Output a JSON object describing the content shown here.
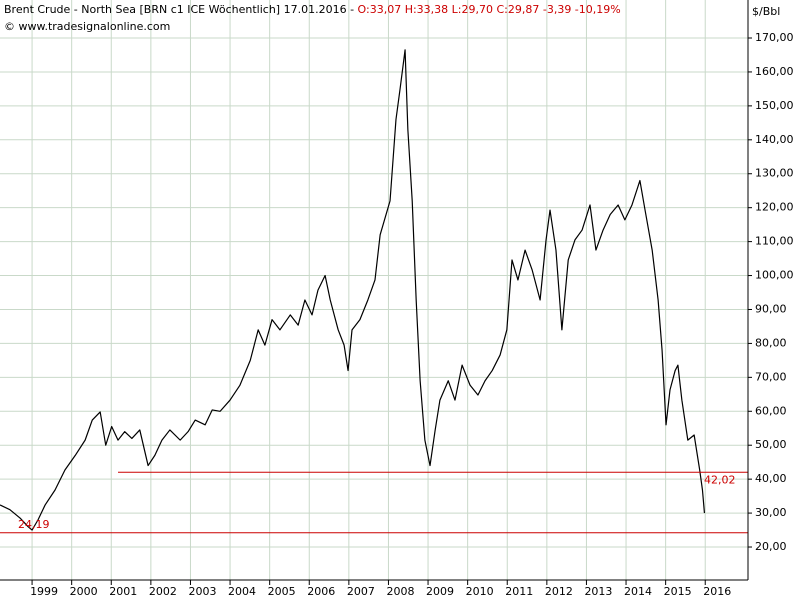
{
  "chart_data": {
    "type": "line",
    "title": "Brent Crude - North Sea [BRN c1 ICE  Wöchentlich] 17.01.2016 - ",
    "quote": "O:33,07 H:33,38 L:29,70 C:29,87 -3,39 -10,19%",
    "subtitle": "© www.tradesignalonline.com",
    "y_axis_label": "$/Bbl",
    "x": [
      1998.19,
      1998.44,
      1998.7,
      1998.9,
      1999.0,
      1999.15,
      1999.33,
      1999.58,
      1999.83,
      2000.09,
      2000.34,
      2000.52,
      2000.72,
      2000.86,
      2001.01,
      2001.17,
      2001.34,
      2001.52,
      2001.72,
      2001.93,
      2002.1,
      2002.28,
      2002.48,
      2002.74,
      2002.94,
      2003.12,
      2003.37,
      2003.55,
      2003.75,
      2004.0,
      2004.25,
      2004.51,
      2004.71,
      2004.88,
      2005.06,
      2005.26,
      2005.52,
      2005.72,
      2005.89,
      2006.07,
      2006.22,
      2006.4,
      2006.53,
      2006.73,
      2006.88,
      2006.98,
      2007.08,
      2007.28,
      2007.48,
      2007.66,
      2007.79,
      2007.94,
      2008.04,
      2008.19,
      2008.29,
      2008.42,
      2008.49,
      2008.6,
      2008.7,
      2008.8,
      2008.92,
      2009.05,
      2009.18,
      2009.3,
      2009.51,
      2009.68,
      2009.86,
      2010.06,
      2010.26,
      2010.44,
      2010.62,
      2010.82,
      2010.99,
      2011.12,
      2011.27,
      2011.45,
      2011.63,
      2011.83,
      2011.98,
      2012.08,
      2012.23,
      2012.38,
      2012.54,
      2012.71,
      2012.89,
      2013.09,
      2013.24,
      2013.42,
      2013.6,
      2013.8,
      2013.97,
      2014.15,
      2014.35,
      2014.48,
      2014.66,
      2014.81,
      2014.91,
      2015.01,
      2015.11,
      2015.24,
      2015.31,
      2015.41,
      2015.56,
      2015.72,
      2015.86,
      2015.93,
      2015.98
    ],
    "series": [
      {
        "name": "Brent Crude",
        "color": "#000000",
        "values": [
          32.4,
          31,
          28.5,
          26,
          25,
          28,
          32.4,
          36.8,
          42.7,
          47,
          51.5,
          57.4,
          59.8,
          50,
          55.5,
          51.5,
          54,
          52,
          54.5,
          44,
          47,
          51.5,
          54.5,
          51.5,
          54,
          57.4,
          56,
          60.4,
          60,
          63.3,
          67.7,
          75,
          84,
          79.5,
          87,
          84,
          88.4,
          85.4,
          92.8,
          88.4,
          95.7,
          100,
          92.8,
          84,
          79.5,
          72,
          84,
          87,
          92.8,
          98.7,
          112,
          118,
          122,
          146,
          154.7,
          166.5,
          143,
          122,
          92.8,
          69,
          51.5,
          44,
          54.5,
          63.3,
          69,
          63.3,
          73.6,
          67.7,
          64.8,
          69,
          72,
          76.6,
          84,
          104.6,
          98.7,
          107.5,
          101.6,
          92.8,
          110.5,
          119.3,
          107.5,
          84,
          104.6,
          110.5,
          113.4,
          120.8,
          107.5,
          113.4,
          118,
          120.8,
          116.4,
          120.8,
          128,
          119.3,
          107.5,
          92.8,
          78,
          56,
          66.3,
          72,
          73.6,
          63.3,
          51.5,
          53,
          42.7,
          36.8,
          30
        ]
      }
    ],
    "lines": [
      {
        "value": 42.02,
        "label": "42,02",
        "from": 2001.17,
        "color": "#cc0000"
      },
      {
        "value": 24.19,
        "label": "24,19",
        "color": "#cc0000"
      }
    ],
    "xlim": [
      1998.19,
      2017.08
    ],
    "xticks": [
      1999,
      2000,
      2001,
      2002,
      2003,
      2004,
      2005,
      2006,
      2007,
      2008,
      2009,
      2010,
      2011,
      2012,
      2013,
      2014,
      2015,
      2016
    ],
    "ylim": [
      10.28,
      181.2
    ],
    "yticks": [
      {
        "value": 20,
        "label": "20,00"
      },
      {
        "value": 30,
        "label": "30,00"
      },
      {
        "value": 40,
        "label": "40,00"
      },
      {
        "value": 50,
        "label": "50,00"
      },
      {
        "value": 60,
        "label": "60,00"
      },
      {
        "value": 70,
        "label": "70,00"
      },
      {
        "value": 80,
        "label": "80,00"
      },
      {
        "value": 90,
        "label": "90,00"
      },
      {
        "value": 100,
        "label": "100,00"
      },
      {
        "value": 110,
        "label": "110,00"
      },
      {
        "value": 120,
        "label": "120,00"
      },
      {
        "value": 130,
        "label": "130,00"
      },
      {
        "value": 140,
        "label": "140,00"
      },
      {
        "value": 150,
        "label": "150,00"
      },
      {
        "value": 160,
        "label": "160,00"
      },
      {
        "value": 170,
        "label": "170,00"
      }
    ],
    "grid": true
  }
}
